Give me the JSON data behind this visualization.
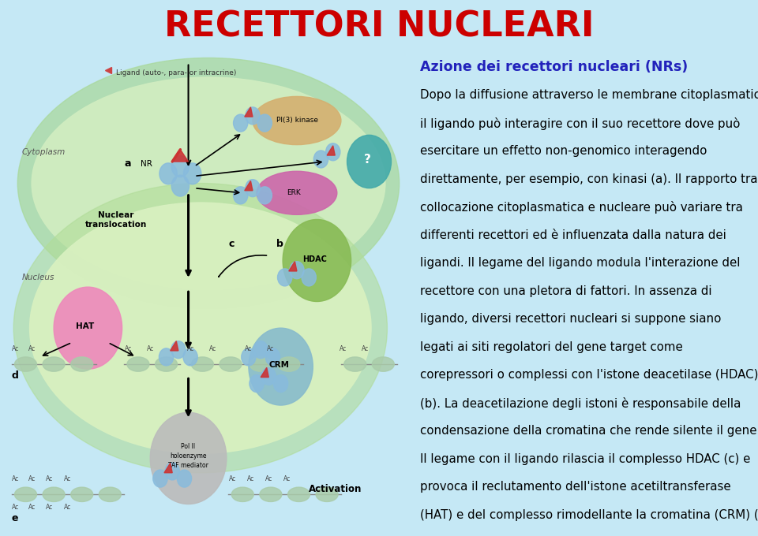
{
  "title": "RECETTORI NUCLEARI",
  "title_color": "#CC0000",
  "title_fontsize": 32,
  "background_color": "#C5E8F5",
  "subtitle": "Azione dei recettori nucleari (NRs)",
  "subtitle_color": "#2222BB",
  "subtitle_fontsize": 12.5,
  "body_fontsize": 10.8,
  "body_color": "#000000",
  "body_text_plain": "Dopo la diffusione attraverso le membrane citoplasmatiche, il ligando può interagire con il suo recettore dove può esercitare un ",
  "body_bold_italic": "effetto non-genomico",
  "body_text_after": " interagendo direttamente, per esempio, con kinasi (a). Il rapporto tra collocazione citoplasmatica e nucleare può variare tra differenti recettori ed è influenzata dalla natura dei ligandi. Il legame del ligando modula l'interazione del recettore con una pletora di fattori. In assenza di ligando, diversi recettori nucleari si suppone siano legati ai siti regolatori del gene target come corepressori o complessi con l'istone deacetilase (HDAC) (b). La deacetilazione degli istoni è responsabile della condensazione della cromatina che rende silente il gene. Il legame con il ligando rilascia il complesso HDAC (c) e provoca il reclutamento dell'istone acetiltransferase (HAT) e del complesso rimodellante la cromatina (CRM) (d). L'ordine  temporale e la richiesta di questi complessi può avvenire in modo recettore-, target-gene- o cellula-specifico. L'ultimo passaggio (e), consiste nel reclutamento del complesso della polimerase II, che comprende l'enzima pol II, TAF (TATA-binding protein-associated factor) e il complesso mediatore.",
  "cytoplasm_color": "#A8D898",
  "cytoplasm_inner_color": "#D0ECC0",
  "nucleus_color": "#B0DC98",
  "nucleus_inner_color": "#D8F0C0",
  "pi3k_color": "#D4B070",
  "erk_color": "#CC66AA",
  "qmark_color": "#44AAAA",
  "receptor_circle_color": "#88BBDD",
  "hat_color": "#EE88BB",
  "hdac_color": "#88BB55",
  "crm_color": "#88BBCC",
  "pol2_color": "#BBBBBB",
  "nucleosome_color": "#AACCAA",
  "arrow_color": "#333333"
}
